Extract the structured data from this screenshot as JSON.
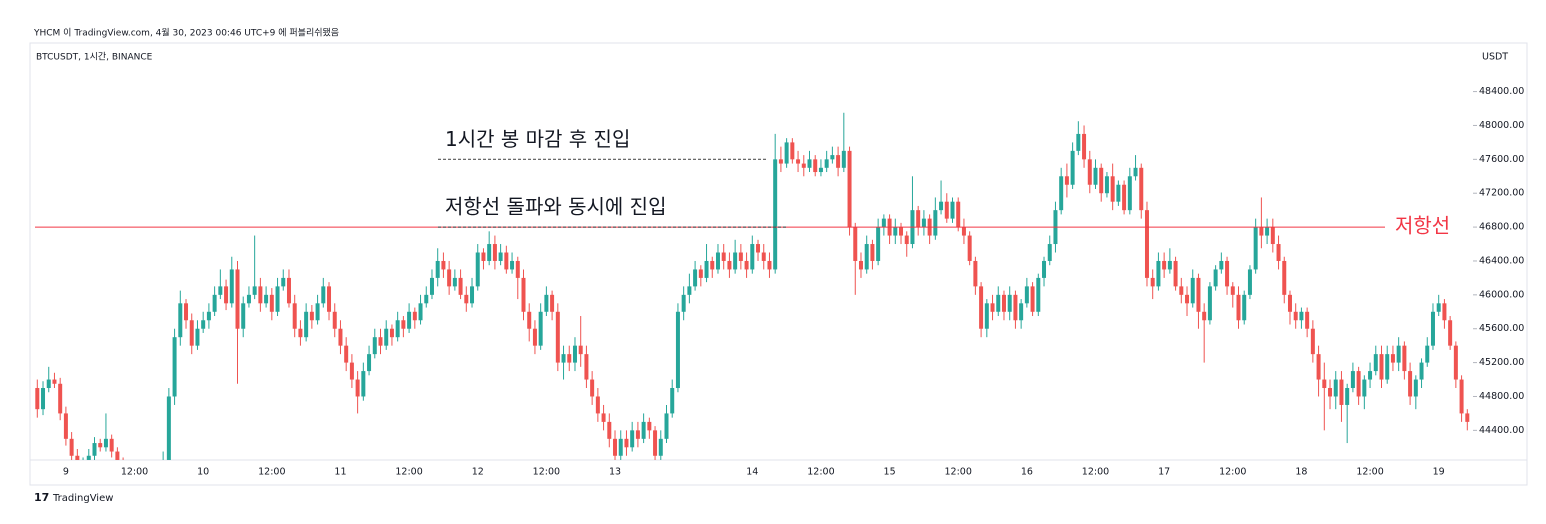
{
  "header": {
    "published": "YHCM 이 TradingView.com, 4월 30, 2023 00:46 UTC+9 에 퍼블리쉬됐음",
    "symbol": "BTCUSDT, 1시간, BINANCE"
  },
  "footer": {
    "logo": "TradingView"
  },
  "chart_data": {
    "type": "candlestick",
    "currency": "USDT",
    "up_color": "#26a69a",
    "down_color": "#ef5350",
    "ylim": [
      44050,
      48950
    ],
    "yticks": [
      {
        "value": 44400,
        "label": "44400.00"
      },
      {
        "value": 44800,
        "label": "44800.00"
      },
      {
        "value": 45200,
        "label": "45200.00"
      },
      {
        "value": 45600,
        "label": "45600.00"
      },
      {
        "value": 46000,
        "label": "46000.00"
      },
      {
        "value": 46400,
        "label": "46400.00"
      },
      {
        "value": 46800,
        "label": "46800.00"
      },
      {
        "value": 47200,
        "label": "47200.00"
      },
      {
        "value": 47600,
        "label": "47600.00"
      },
      {
        "value": 48000,
        "label": "48000.00"
      },
      {
        "value": 48400,
        "label": "48400.00"
      }
    ],
    "resistance": {
      "label": "저항선",
      "value": 46800,
      "color": "#f23645"
    },
    "annotations": [
      {
        "text": "1시간 봉 마감 후 진입",
        "value": 47600
      },
      {
        "text": "저항선 돌파와 동시에 진입",
        "value": 46800
      }
    ],
    "categories": [
      null,
      null,
      null,
      null,
      null,
      "9",
      null,
      null,
      null,
      null,
      null,
      null,
      null,
      null,
      null,
      null,
      null,
      "12:00",
      null,
      null,
      null,
      null,
      null,
      null,
      null,
      null,
      null,
      null,
      null,
      "10",
      null,
      null,
      null,
      null,
      null,
      null,
      null,
      null,
      null,
      null,
      null,
      "12:00",
      null,
      null,
      null,
      null,
      null,
      null,
      null,
      null,
      null,
      null,
      null,
      "11",
      null,
      null,
      null,
      null,
      null,
      null,
      null,
      null,
      null,
      null,
      null,
      "12:00",
      null,
      null,
      null,
      null,
      null,
      null,
      null,
      null,
      null,
      null,
      null,
      "12",
      null,
      null,
      null,
      null,
      null,
      null,
      null,
      null,
      null,
      null,
      null,
      "12:00",
      null,
      null,
      null,
      null,
      null,
      null,
      null,
      null,
      null,
      null,
      null,
      "13",
      null,
      null,
      null,
      null,
      null,
      null,
      null,
      null,
      null,
      null,
      null,
      null,
      null,
      null,
      null,
      null,
      null,
      null,
      null,
      null,
      null,
      null,
      null,
      "14",
      null,
      null,
      null,
      null,
      null,
      null,
      null,
      null,
      null,
      null,
      null,
      "12:00",
      null,
      null,
      null,
      null,
      null,
      null,
      null,
      null,
      null,
      null,
      null,
      "15",
      null,
      null,
      null,
      null,
      null,
      null,
      null,
      null,
      null,
      null,
      null,
      "12:00",
      null,
      null,
      null,
      null,
      null,
      null,
      null,
      null,
      null,
      null,
      null,
      "16",
      null,
      null,
      null,
      null,
      null,
      null,
      null,
      null,
      null,
      null,
      null,
      "12:00",
      null,
      null,
      null,
      null,
      null,
      null,
      null,
      null,
      null,
      null,
      null,
      "17",
      null,
      null,
      null,
      null,
      null,
      null,
      null,
      null,
      null,
      null,
      null,
      "12:00",
      null,
      null,
      null,
      null,
      null,
      null,
      null,
      null,
      null,
      null,
      null,
      "18",
      null,
      null,
      null,
      null,
      null,
      null,
      null,
      null,
      null,
      null,
      null,
      "12:00",
      null,
      null,
      null,
      null,
      null,
      null,
      null,
      null,
      null,
      null,
      null,
      "19",
      null,
      null,
      null,
      null,
      null
    ],
    "open": [
      44900,
      44650,
      44900,
      45000,
      44950,
      44600,
      44300,
      44100,
      43950,
      44000,
      44100,
      44250,
      44200,
      44300,
      44150,
      44000,
      43900,
      43850,
      43900,
      43800,
      43850,
      43900,
      43950,
      44050,
      44800,
      45500,
      45900,
      45700,
      45400,
      45600,
      45700,
      45800,
      46000,
      46100,
      45900,
      46300,
      45600,
      45900,
      46000,
      46100,
      45900,
      46000,
      45800,
      46100,
      46200,
      45900,
      45600,
      45500,
      45800,
      45700,
      45900,
      46100,
      45800,
      45600,
      45400,
      45200,
      45000,
      44800,
      45100,
      45300,
      45500,
      45400,
      45600,
      45500,
      45700,
      45600,
      45800,
      45700,
      45900,
      46000,
      46200,
      46400,
      46300,
      46100,
      46200,
      46000,
      45900,
      46100,
      46500,
      46400,
      46600,
      46400,
      46500,
      46300,
      46400,
      46200,
      45800,
      45600,
      45400,
      45800,
      46000,
      45800,
      45200,
      45300,
      45200,
      45400,
      45300,
      45000,
      44800,
      44600,
      44500,
      44300,
      44100,
      44300,
      44200,
      44400,
      44300,
      44500,
      44400,
      44100,
      44300,
      44600,
      44900,
      45800,
      46000,
      46100,
      46300,
      46200,
      46400,
      46300,
      46500,
      46400,
      46300,
      46500,
      46400,
      46300,
      46600,
      46500,
      46400,
      46300,
      47600,
      47550,
      47800,
      47600,
      47550,
      47500,
      47600,
      47450,
      47500,
      47600,
      47650,
      47500,
      47700,
      46800,
      46400,
      46300,
      46600,
      46400,
      46800,
      46900,
      46700,
      46800,
      46700,
      46600,
      47000,
      46800,
      46900,
      46700,
      47000,
      47100,
      46900,
      47100,
      46800,
      46700,
      46400,
      46100,
      45600,
      45900,
      45800,
      46000,
      45800,
      46000,
      45700,
      45900,
      46100,
      45800,
      46200,
      46400,
      46600,
      47000,
      47400,
      47300,
      47700,
      47900,
      47600,
      47300,
      47500,
      47200,
      47400,
      47100,
      47300,
      47000,
      47400,
      47500,
      47000,
      46200,
      46100,
      46400,
      46300,
      46400,
      46100,
      46000,
      45900,
      46200,
      45800,
      45700,
      46100,
      46300,
      46400,
      46100,
      46000,
      45700,
      46000,
      46300,
      46800,
      46700,
      46800,
      46600,
      46400,
      46000,
      45800,
      45700,
      45800,
      45600,
      45300,
      45000,
      44900,
      44800,
      45000,
      44700,
      44900,
      45100,
      44800,
      45000,
      45100,
      45300,
      45000,
      45300,
      45200,
      45400,
      45100,
      44800,
      45000,
      45200,
      45400,
      45800,
      45900,
      45700,
      45400,
      45000,
      44600
    ],
    "high": [
      45000,
      44980,
      45150,
      45080,
      45020,
      44680,
      44380,
      44180,
      44080,
      44180,
      44320,
      44300,
      44600,
      44350,
      44200,
      44080,
      43980,
      43980,
      43950,
      43920,
      43980,
      44020,
      44150,
      44900,
      45600,
      46050,
      45950,
      45780,
      45700,
      45800,
      45900,
      46100,
      46300,
      46180,
      46450,
      46400,
      45980,
      46100,
      46700,
      46200,
      46100,
      46080,
      46200,
      46300,
      46300,
      46000,
      45700,
      45900,
      45880,
      46000,
      46200,
      46150,
      45900,
      45700,
      45500,
      45300,
      45100,
      45200,
      45400,
      45600,
      45600,
      45700,
      45650,
      45800,
      45750,
      45900,
      45850,
      46000,
      46100,
      46300,
      46550,
      46500,
      46400,
      46300,
      46300,
      46100,
      46200,
      46600,
      46550,
      46750,
      46700,
      46600,
      46580,
      46500,
      46450,
      46300,
      45900,
      45700,
      45900,
      46100,
      46050,
      45900,
      45400,
      45400,
      45500,
      45750,
      45400,
      45100,
      44900,
      44700,
      44600,
      44400,
      44400,
      44400,
      44500,
      44500,
      44600,
      44550,
      44450,
      44400,
      44700,
      45000,
      45900,
      46100,
      46250,
      46400,
      46350,
      46600,
      46450,
      46600,
      46600,
      46500,
      46650,
      46600,
      46500,
      46700,
      46650,
      46600,
      46500,
      47900,
      47750,
      47850,
      47850,
      47700,
      47650,
      47700,
      47650,
      47600,
      47700,
      47750,
      47750,
      48150,
      47750,
      46850,
      46500,
      46700,
      46650,
      46900,
      46950,
      46950,
      46900,
      46850,
      46750,
      47400,
      47050,
      47000,
      46950,
      47150,
      47350,
      47200,
      47150,
      47150,
      46900,
      46750,
      46450,
      46150,
      45950,
      46000,
      46100,
      46050,
      46100,
      46050,
      45950,
      46200,
      46150,
      46250,
      46450,
      46700,
      47100,
      47500,
      47550,
      47800,
      48050,
      48000,
      47700,
      47600,
      47550,
      47450,
      47550,
      47350,
      47350,
      47500,
      47650,
      47550,
      47100,
      46300,
      46500,
      46500,
      46550,
      46450,
      46200,
      46100,
      46300,
      46250,
      45900,
      46150,
      46350,
      46500,
      46450,
      46150,
      46100,
      46050,
      46350,
      46900,
      47150,
      46900,
      46900,
      46700,
      46450,
      46050,
      45900,
      45850,
      45850,
      45700,
      45400,
      45200,
      45000,
      45100,
      45100,
      44950,
      45200,
      45150,
      45050,
      45200,
      45400,
      45400,
      45400,
      45400,
      45500,
      45450,
      45200,
      45050,
      45250,
      45500,
      45900,
      46000,
      45950,
      45750,
      45450,
      45050,
      44650
    ],
    "low": [
      44550,
      44580,
      44850,
      44900,
      44520,
      44220,
      44020,
      43880,
      43900,
      43950,
      44050,
      44150,
      44150,
      44080,
      43920,
      43820,
      43780,
      43820,
      43720,
      43750,
      43780,
      43850,
      43900,
      44000,
      44700,
      45400,
      45600,
      45300,
      45350,
      45550,
      45600,
      45750,
      45950,
      45820,
      45850,
      44950,
      45500,
      45850,
      45950,
      45800,
      45850,
      45700,
      45750,
      46050,
      45850,
      45500,
      45400,
      45450,
      45600,
      45650,
      45850,
      45700,
      45500,
      45300,
      45100,
      44900,
      44600,
      44750,
      45050,
      45250,
      45300,
      45350,
      45400,
      45450,
      45500,
      45550,
      45600,
      45650,
      45850,
      45950,
      46100,
      46200,
      46000,
      46050,
      45950,
      45800,
      45850,
      46050,
      46300,
      46350,
      46300,
      46350,
      46250,
      46250,
      45950,
      45700,
      45450,
      45300,
      45350,
      45750,
      45700,
      45100,
      45000,
      45100,
      45100,
      45150,
      44900,
      44700,
      44500,
      44400,
      44200,
      44000,
      44050,
      44100,
      44150,
      44200,
      44250,
      44300,
      44000,
      44050,
      44250,
      44550,
      44850,
      45700,
      45900,
      46050,
      46100,
      46150,
      46200,
      46250,
      46300,
      46200,
      46250,
      46300,
      46200,
      46250,
      46400,
      46300,
      46200,
      46250,
      47450,
      47500,
      47550,
      47450,
      47400,
      47450,
      47400,
      47400,
      47450,
      47550,
      47400,
      47450,
      46700,
      46000,
      46200,
      46250,
      46300,
      46350,
      46700,
      46600,
      46600,
      46600,
      46450,
      46550,
      46700,
      46700,
      46600,
      46650,
      46950,
      46850,
      46850,
      46750,
      46600,
      46350,
      46000,
      45500,
      45500,
      45700,
      45750,
      45700,
      45700,
      45600,
      45600,
      45850,
      45750,
      45750,
      46100,
      46350,
      46500,
      46950,
      47150,
      47250,
      47650,
      47500,
      47200,
      47250,
      47100,
      47150,
      47000,
      47050,
      46950,
      46950,
      47350,
      46900,
      46100,
      45950,
      46050,
      46200,
      46250,
      46050,
      45900,
      45750,
      45850,
      45600,
      45200,
      45650,
      46050,
      46250,
      46000,
      45850,
      45600,
      45650,
      45950,
      46250,
      46550,
      46600,
      46500,
      46300,
      45900,
      45650,
      45600,
      45600,
      45500,
      45200,
      44800,
      44400,
      44650,
      44650,
      44500,
      44250,
      44850,
      44700,
      44650,
      44900,
      45050,
      44900,
      44950,
      45100,
      45100,
      45000,
      44700,
      44650,
      44900,
      45150,
      45350,
      45750,
      45600,
      45350,
      44900,
      44500,
      44400
    ],
    "close": [
      44650,
      44900,
      45000,
      44950,
      44600,
      44300,
      44100,
      43950,
      44000,
      44100,
      44250,
      44200,
      44300,
      44150,
      44000,
      43900,
      43850,
      43900,
      43800,
      43850,
      43900,
      43950,
      44050,
      44800,
      45500,
      45900,
      45700,
      45400,
      45600,
      45700,
      45800,
      46000,
      46100,
      45900,
      46300,
      45600,
      45900,
      46000,
      46100,
      45900,
      46000,
      45800,
      46100,
      46200,
      45900,
      45600,
      45500,
      45800,
      45700,
      45900,
      46100,
      45800,
      45600,
      45400,
      45200,
      45000,
      44800,
      45100,
      45300,
      45500,
      45400,
      45600,
      45500,
      45700,
      45600,
      45800,
      45700,
      45900,
      46000,
      46200,
      46400,
      46300,
      46100,
      46200,
      46000,
      45900,
      46100,
      46500,
      46400,
      46600,
      46400,
      46500,
      46300,
      46400,
      46200,
      45800,
      45600,
      45400,
      45800,
      46000,
      45800,
      45200,
      45300,
      45200,
      45400,
      45300,
      45000,
      44800,
      44600,
      44500,
      44300,
      44100,
      44300,
      44200,
      44400,
      44300,
      44500,
      44400,
      44100,
      44300,
      44600,
      44900,
      45800,
      46000,
      46100,
      46300,
      46200,
      46400,
      46300,
      46500,
      46400,
      46300,
      46500,
      46400,
      46300,
      46600,
      46500,
      46400,
      46300,
      47600,
      47550,
      47800,
      47600,
      47550,
      47500,
      47600,
      47450,
      47500,
      47600,
      47650,
      47500,
      47700,
      46800,
      46400,
      46300,
      46600,
      46400,
      46800,
      46900,
      46700,
      46800,
      46700,
      46600,
      47000,
      46800,
      46900,
      46700,
      47000,
      47100,
      46900,
      47100,
      46800,
      46700,
      46400,
      46100,
      45600,
      45900,
      45800,
      46000,
      45800,
      46000,
      45700,
      45900,
      46100,
      45800,
      46200,
      46400,
      46600,
      47000,
      47400,
      47300,
      47700,
      47900,
      47600,
      47300,
      47500,
      47200,
      47400,
      47100,
      47300,
      47000,
      47400,
      47500,
      47000,
      46200,
      46100,
      46400,
      46300,
      46400,
      46100,
      46000,
      45900,
      46200,
      45800,
      45700,
      46100,
      46300,
      46400,
      46100,
      46000,
      45700,
      46000,
      46300,
      46800,
      46700,
      46800,
      46600,
      46400,
      46000,
      45800,
      45700,
      45800,
      45600,
      45300,
      45000,
      44900,
      44800,
      45000,
      44700,
      44900,
      45100,
      44800,
      45000,
      45100,
      45300,
      45000,
      45300,
      45200,
      45400,
      45100,
      44800,
      45000,
      45200,
      45400,
      45800,
      45900,
      45700,
      45400,
      45000,
      44600,
      44500
    ]
  }
}
